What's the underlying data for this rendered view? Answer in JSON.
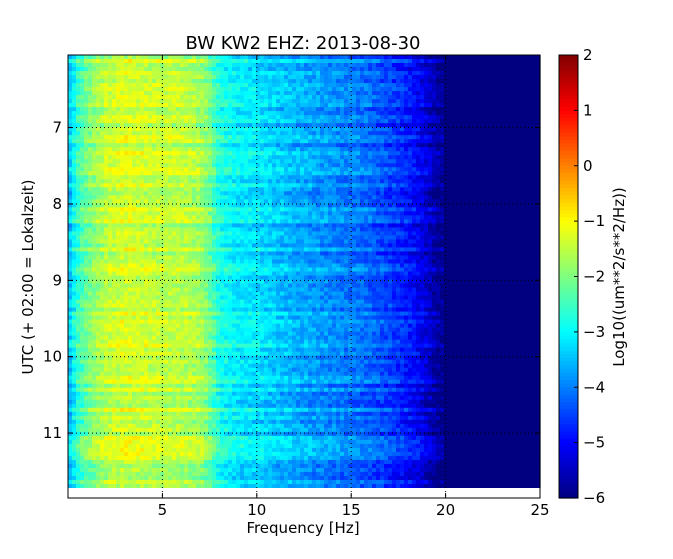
{
  "chart_data": {
    "type": "heatmap",
    "title": "BW KW2 EHZ: 2013-08-30",
    "xlabel": "Frequency [Hz]",
    "ylabel": "UTC (+ 02:00 = Lokalzeit)",
    "colorbar_label": "Log10((um**2/s**2/Hz))",
    "xlim": [
      0,
      25
    ],
    "ylim": [
      6.05,
      11.85
    ],
    "clim": [
      -6,
      2
    ],
    "colormap": "jet",
    "grid": true,
    "x_ticks": [
      5,
      10,
      15,
      20,
      25
    ],
    "x_tick_labels": [
      "5",
      "10",
      "15",
      "20",
      "25"
    ],
    "y_ticks": [
      7,
      8,
      9,
      10,
      11
    ],
    "y_tick_labels": [
      "7",
      "8",
      "9",
      "10",
      "11"
    ],
    "colorbar_ticks": [
      -6,
      -5,
      -4,
      -3,
      -2,
      -1,
      0,
      1,
      2
    ],
    "colorbar_tick_labels": [
      "−6",
      "−5",
      "−4",
      "−3",
      "−2",
      "−1",
      "0",
      "1",
      "2"
    ],
    "spectrum_profile": {
      "frequency_hz": [
        0,
        0.5,
        1,
        2,
        3,
        4,
        5,
        6,
        7,
        7.5,
        8,
        9,
        10,
        12,
        14,
        16,
        17,
        18,
        19,
        19.5,
        20,
        25
      ],
      "log10_psd": [
        -3.6,
        -2.6,
        -2.1,
        -1.5,
        -1.3,
        -1.4,
        -1.5,
        -1.5,
        -1.7,
        -2.1,
        -2.8,
        -3.1,
        -3.2,
        -3.6,
        -3.9,
        -4.2,
        -4.5,
        -4.8,
        -5.3,
        -5.7,
        -6.0,
        -6.0
      ]
    }
  }
}
